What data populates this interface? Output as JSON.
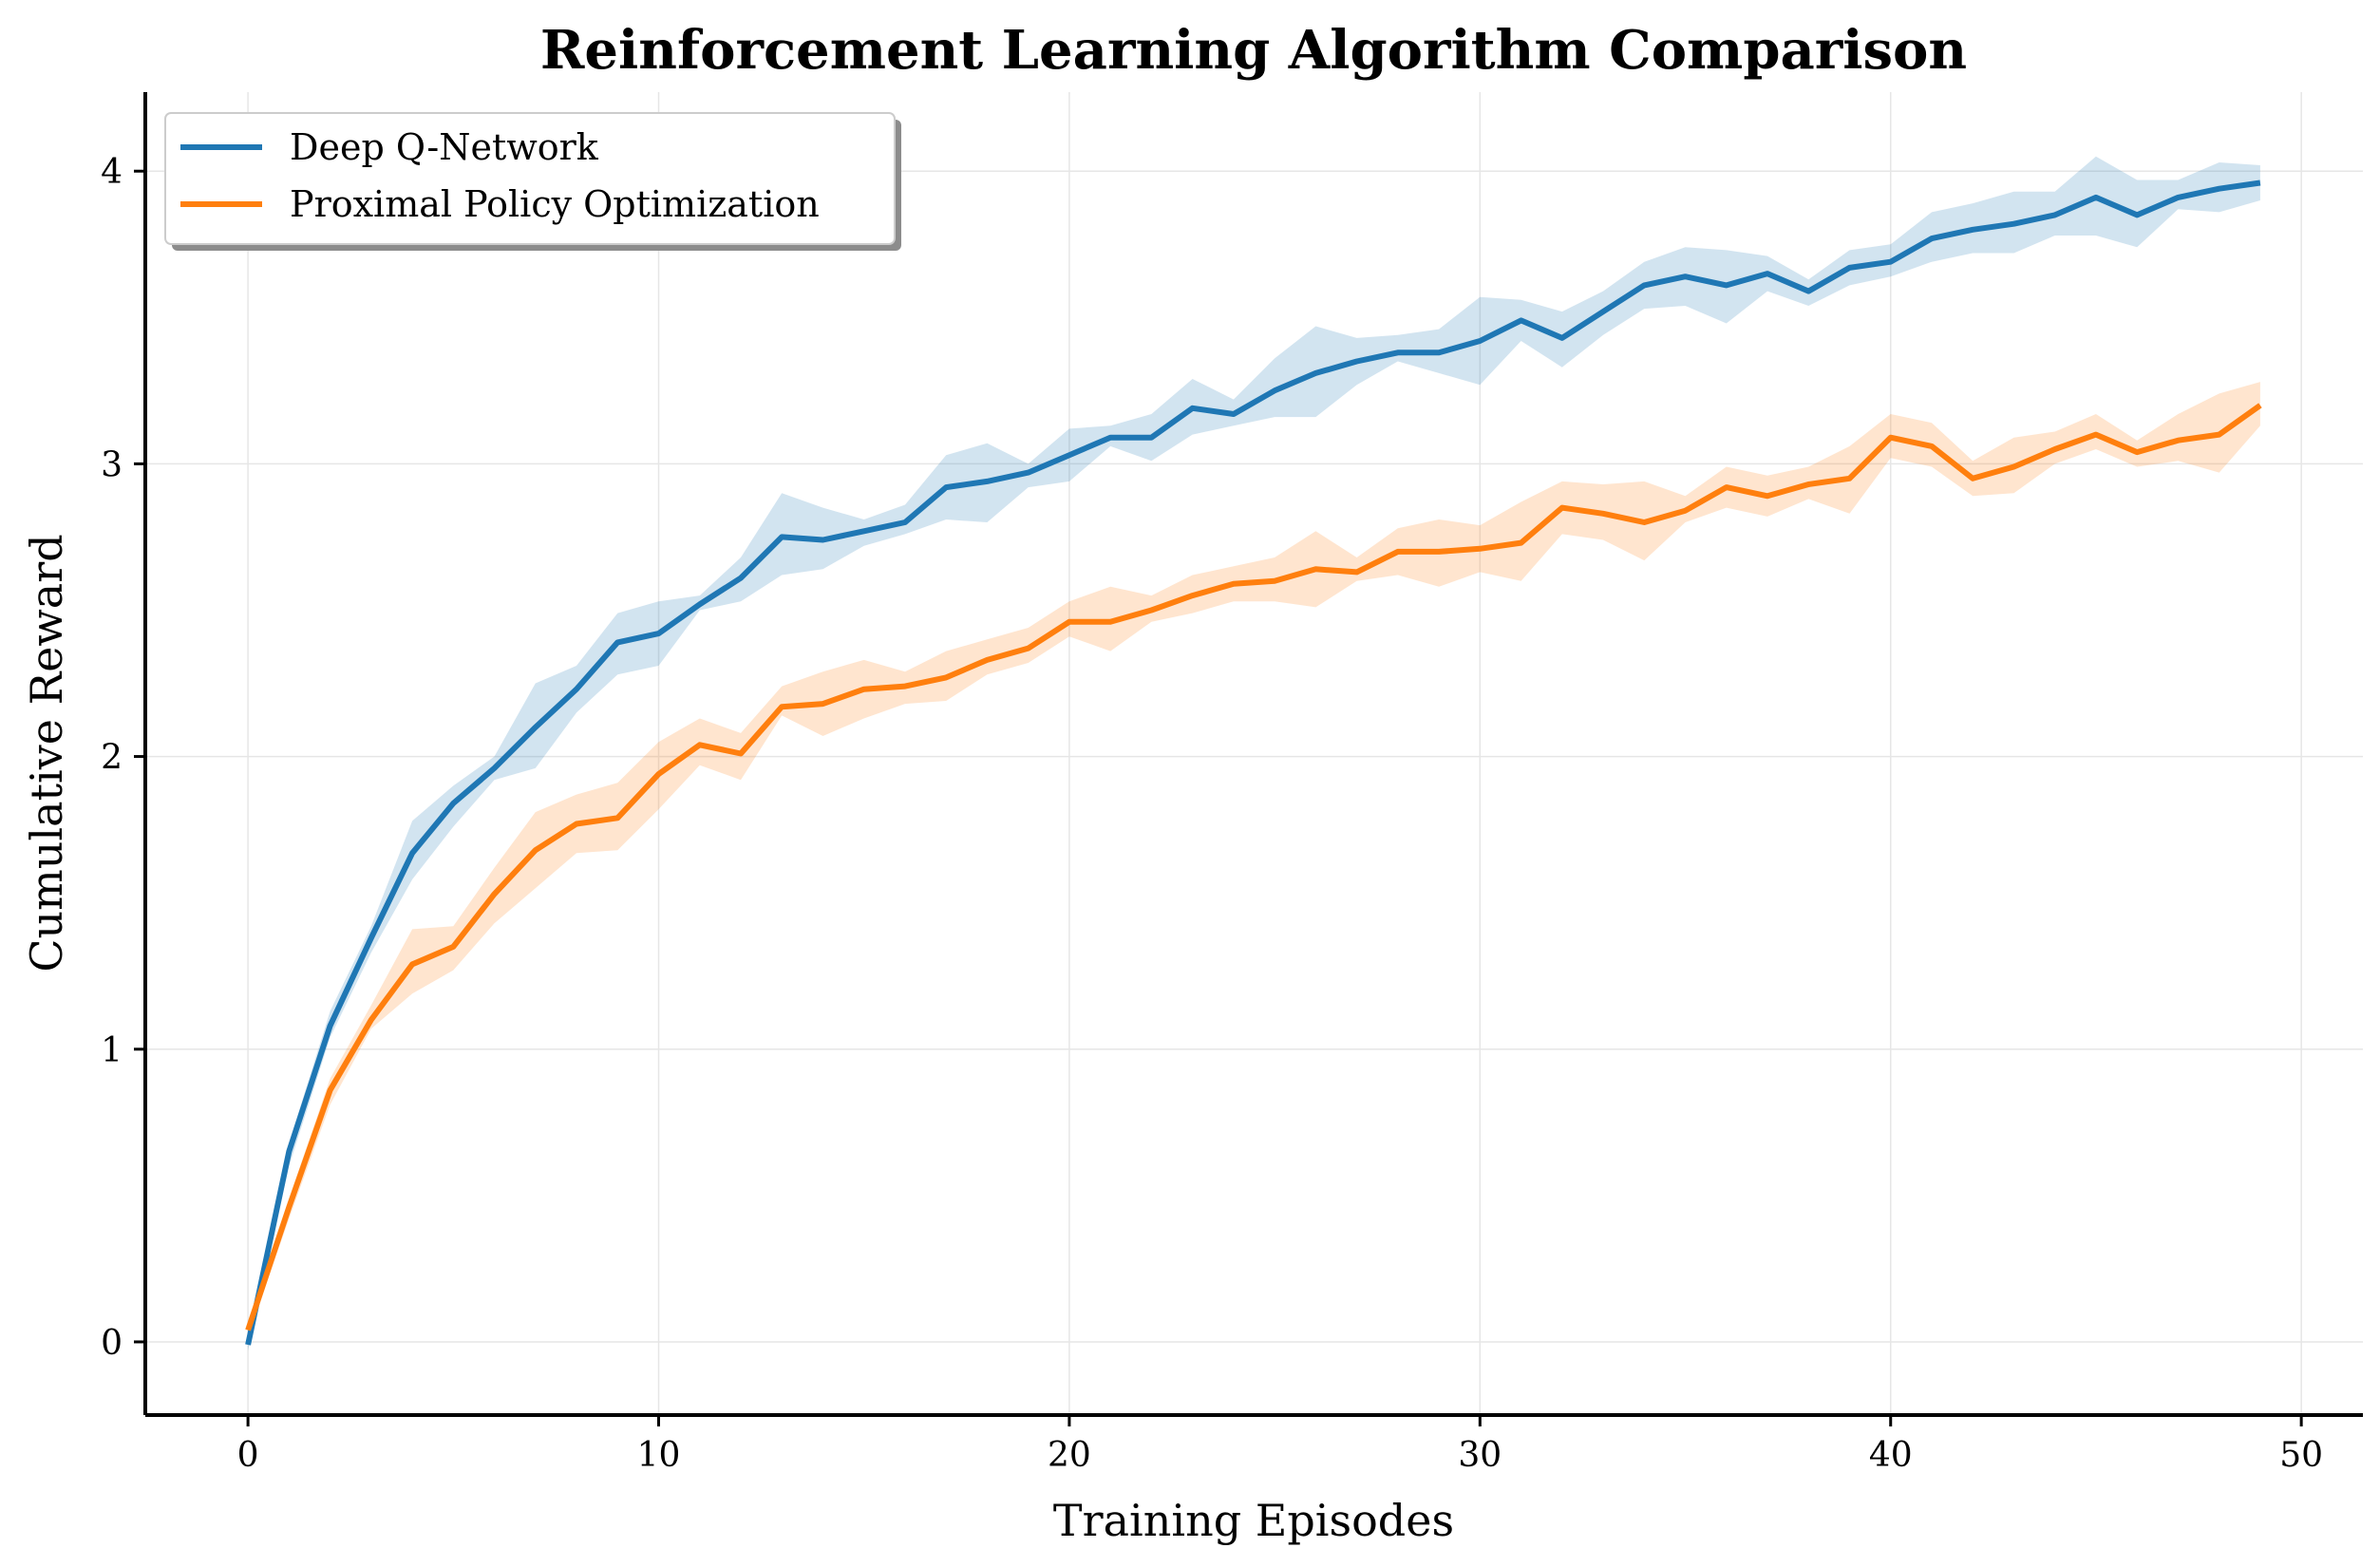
{
  "chart_data": {
    "type": "line",
    "title": "Reinforcement Learning Algorithm Comparison",
    "xlabel": "Training Episodes",
    "ylabel": "Cumulative Reward",
    "xlim": [
      -2.5,
      51.5
    ],
    "ylim": [
      -0.25,
      4.27
    ],
    "xticks": [
      0,
      10,
      20,
      30,
      40,
      50
    ],
    "yticks": [
      0,
      1,
      2,
      3,
      4
    ],
    "grid": true,
    "legend_position": "upper-left",
    "series": [
      {
        "name": "Deep Q-Network",
        "color": "#1f77b4",
        "band_color": "#1f77b4",
        "x": [
          0,
          1,
          2,
          3,
          4,
          5,
          6,
          7,
          8,
          9,
          10,
          11,
          12,
          13,
          14,
          15,
          16,
          17,
          18,
          19,
          20,
          21,
          22,
          23,
          24,
          25,
          26,
          27,
          28,
          29,
          30,
          31,
          32,
          33,
          34,
          35,
          36,
          37,
          38,
          39,
          40,
          41,
          42,
          43,
          44,
          45,
          46,
          47,
          48,
          49
        ],
        "values": [
          -0.01,
          0.65,
          1.08,
          1.38,
          1.67,
          1.84,
          1.96,
          2.1,
          2.23,
          2.39,
          2.42,
          2.52,
          2.61,
          2.75,
          2.74,
          2.77,
          2.8,
          2.92,
          2.94,
          2.97,
          3.03,
          3.09,
          3.09,
          3.19,
          3.17,
          3.25,
          3.31,
          3.35,
          3.38,
          3.38,
          3.42,
          3.49,
          3.43,
          3.52,
          3.61,
          3.64,
          3.61,
          3.65,
          3.59,
          3.67,
          3.69,
          3.77,
          3.8,
          3.82,
          3.85,
          3.91,
          3.85,
          3.91,
          3.94,
          3.96
        ],
        "lower": [
          -0.03,
          0.6,
          1.04,
          1.33,
          1.58,
          1.76,
          1.92,
          1.96,
          2.15,
          2.28,
          2.31,
          2.5,
          2.53,
          2.62,
          2.64,
          2.72,
          2.76,
          2.81,
          2.8,
          2.92,
          2.94,
          3.06,
          3.01,
          3.1,
          3.13,
          3.16,
          3.16,
          3.27,
          3.35,
          3.31,
          3.27,
          3.42,
          3.33,
          3.44,
          3.53,
          3.54,
          3.48,
          3.59,
          3.54,
          3.61,
          3.64,
          3.69,
          3.72,
          3.72,
          3.78,
          3.78,
          3.74,
          3.87,
          3.86,
          3.9
        ],
        "upper": [
          0.02,
          0.68,
          1.13,
          1.42,
          1.78,
          1.9,
          2.0,
          2.25,
          2.31,
          2.49,
          2.53,
          2.55,
          2.68,
          2.9,
          2.85,
          2.81,
          2.86,
          3.03,
          3.07,
          3.0,
          3.12,
          3.13,
          3.17,
          3.29,
          3.22,
          3.36,
          3.47,
          3.43,
          3.44,
          3.46,
          3.57,
          3.56,
          3.52,
          3.59,
          3.69,
          3.74,
          3.73,
          3.71,
          3.63,
          3.73,
          3.75,
          3.86,
          3.89,
          3.93,
          3.93,
          4.05,
          3.97,
          3.97,
          4.03,
          4.02
        ]
      },
      {
        "name": "Proximal Policy Optimization",
        "color": "#ff7f0e",
        "band_color": "#ff7f0e",
        "x": [
          0,
          1,
          2,
          3,
          4,
          5,
          6,
          7,
          8,
          9,
          10,
          11,
          12,
          13,
          14,
          15,
          16,
          17,
          18,
          19,
          20,
          21,
          22,
          23,
          24,
          25,
          26,
          27,
          28,
          29,
          30,
          31,
          32,
          33,
          34,
          35,
          36,
          37,
          38,
          39,
          40,
          41,
          42,
          43,
          44,
          45,
          46,
          47,
          48,
          49
        ],
        "values": [
          0.04,
          0.46,
          0.86,
          1.1,
          1.29,
          1.35,
          1.53,
          1.68,
          1.77,
          1.79,
          1.94,
          2.04,
          2.01,
          2.17,
          2.18,
          2.23,
          2.24,
          2.27,
          2.33,
          2.37,
          2.46,
          2.46,
          2.5,
          2.55,
          2.59,
          2.6,
          2.64,
          2.63,
          2.7,
          2.7,
          2.71,
          2.73,
          2.85,
          2.83,
          2.8,
          2.84,
          2.92,
          2.89,
          2.93,
          2.95,
          3.09,
          3.06,
          2.95,
          2.99,
          3.05,
          3.1,
          3.04,
          3.08,
          3.1,
          3.2
        ],
        "lower": [
          0.02,
          0.42,
          0.81,
          1.07,
          1.19,
          1.27,
          1.43,
          1.55,
          1.67,
          1.68,
          1.82,
          1.97,
          1.92,
          2.14,
          2.07,
          2.13,
          2.18,
          2.19,
          2.28,
          2.32,
          2.41,
          2.36,
          2.46,
          2.49,
          2.53,
          2.53,
          2.51,
          2.6,
          2.62,
          2.58,
          2.63,
          2.6,
          2.76,
          2.74,
          2.67,
          2.8,
          2.85,
          2.82,
          2.88,
          2.83,
          3.02,
          2.99,
          2.89,
          2.9,
          3.0,
          3.05,
          2.99,
          3.01,
          2.97,
          3.13
        ],
        "upper": [
          0.07,
          0.49,
          0.9,
          1.15,
          1.41,
          1.42,
          1.62,
          1.81,
          1.87,
          1.91,
          2.05,
          2.13,
          2.08,
          2.24,
          2.29,
          2.33,
          2.29,
          2.36,
          2.4,
          2.44,
          2.53,
          2.58,
          2.55,
          2.62,
          2.65,
          2.68,
          2.77,
          2.68,
          2.78,
          2.81,
          2.79,
          2.87,
          2.94,
          2.93,
          2.94,
          2.89,
          2.99,
          2.96,
          2.99,
          3.06,
          3.17,
          3.14,
          3.01,
          3.09,
          3.11,
          3.17,
          3.08,
          3.17,
          3.24,
          3.28
        ]
      }
    ]
  }
}
